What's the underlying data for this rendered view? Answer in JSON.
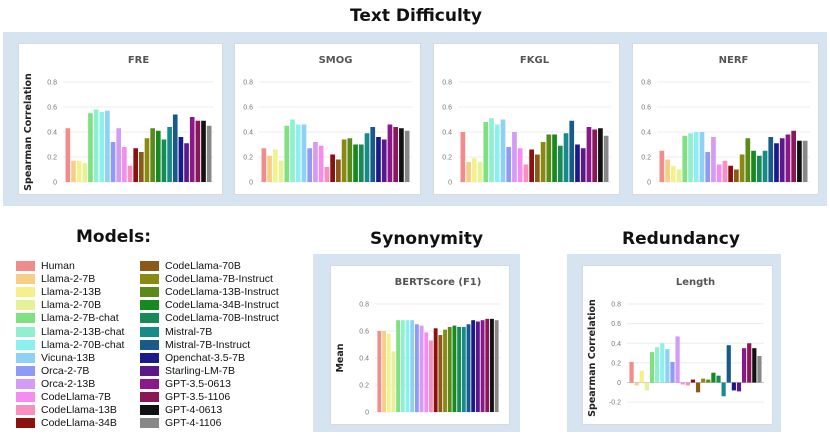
{
  "titles": {
    "text_difficulty": "Text Difficulty",
    "models": "Models:",
    "synonymity": "Synonymity",
    "redundancy": "Redundancy"
  },
  "models": [
    {
      "name": "Human",
      "color": "#f28b8b"
    },
    {
      "name": "Llama-2-7B",
      "color": "#f6cf86"
    },
    {
      "name": "Llama-2-13B",
      "color": "#f4f18c"
    },
    {
      "name": "Llama-2-70B",
      "color": "#e6f29a"
    },
    {
      "name": "Llama-2-7B-chat",
      "color": "#7ee07e"
    },
    {
      "name": "Llama-2-13B-chat",
      "color": "#8ff0cf"
    },
    {
      "name": "Llama-2-70B-chat",
      "color": "#8cf0f0"
    },
    {
      "name": "Vicuna-13B",
      "color": "#8fd0f6"
    },
    {
      "name": "Orca-2-7B",
      "color": "#8f9af6"
    },
    {
      "name": "Orca-2-13B",
      "color": "#d49af4"
    },
    {
      "name": "CodeLlama-7B",
      "color": "#f58cf0"
    },
    {
      "name": "CodeLlama-13B",
      "color": "#f78fbf"
    },
    {
      "name": "CodeLlama-34B",
      "color": "#8c1010"
    },
    {
      "name": "CodeLlama-70B",
      "color": "#8a5a16"
    },
    {
      "name": "CodeLlama-7B-Instruct",
      "color": "#8a8a12"
    },
    {
      "name": "CodeLlama-13B-Instruct",
      "color": "#5a8a18"
    },
    {
      "name": "CodeLlama-34B-Instruct",
      "color": "#168a20"
    },
    {
      "name": "CodeLlama-70B-Instruct",
      "color": "#178a58"
    },
    {
      "name": "Mistral-7B",
      "color": "#178a8a"
    },
    {
      "name": "Mistral-7B-Instruct",
      "color": "#185a8a"
    },
    {
      "name": "Openchat-3.5-7B",
      "color": "#1a1a8c"
    },
    {
      "name": "Starling-LM-7B",
      "color": "#5a188c"
    },
    {
      "name": "GPT-3.5-0613",
      "color": "#8a188a"
    },
    {
      "name": "GPT-3.5-1106",
      "color": "#8a1858"
    },
    {
      "name": "GPT-4-0613",
      "color": "#111111"
    },
    {
      "name": "GPT-4-1106",
      "color": "#888888"
    }
  ],
  "chart_data": [
    {
      "type": "bar",
      "title": "FRE",
      "ylabel": "Spearman Correlation",
      "ylim": [
        0,
        0.8
      ],
      "yticks": [
        0,
        0.2,
        0.4,
        0.6,
        0.8
      ],
      "yticklabels": [
        "0",
        "0.2",
        "0.4",
        "0.6",
        "0.8"
      ],
      "values": [
        0.43,
        0.17,
        0.17,
        0.15,
        0.55,
        0.58,
        0.56,
        0.57,
        0.32,
        0.43,
        0.28,
        0.13,
        0.27,
        0.24,
        0.35,
        0.43,
        0.41,
        0.34,
        0.44,
        0.54,
        0.36,
        0.31,
        0.52,
        0.49,
        0.49,
        0.45
      ]
    },
    {
      "type": "bar",
      "title": "SMOG",
      "ylabel": "",
      "ylim": [
        0,
        0.8
      ],
      "yticks": [
        0,
        0.2,
        0.4,
        0.6,
        0.8
      ],
      "yticklabels": [
        "0",
        "0.2",
        "0.4",
        "0.6",
        "0.8"
      ],
      "values": [
        0.27,
        0.21,
        0.26,
        0.17,
        0.45,
        0.5,
        0.46,
        0.46,
        0.27,
        0.32,
        0.29,
        0.12,
        0.22,
        0.18,
        0.34,
        0.35,
        0.3,
        0.3,
        0.39,
        0.44,
        0.36,
        0.34,
        0.46,
        0.44,
        0.43,
        0.41
      ]
    },
    {
      "type": "bar",
      "title": "FKGL",
      "ylabel": "",
      "ylim": [
        0,
        0.8
      ],
      "yticks": [
        0,
        0.2,
        0.4,
        0.6,
        0.8
      ],
      "yticklabels": [
        "0",
        "0.2",
        "0.4",
        "0.6",
        "0.8"
      ],
      "values": [
        0.4,
        0.16,
        0.19,
        0.16,
        0.48,
        0.51,
        0.46,
        0.5,
        0.28,
        0.4,
        0.27,
        0.14,
        0.26,
        0.22,
        0.32,
        0.38,
        0.38,
        0.29,
        0.39,
        0.49,
        0.3,
        0.27,
        0.44,
        0.42,
        0.43,
        0.37
      ]
    },
    {
      "type": "bar",
      "title": "NERF",
      "ylabel": "",
      "ylim": [
        0,
        0.8
      ],
      "yticks": [
        0,
        0.2,
        0.4,
        0.6,
        0.8
      ],
      "yticklabels": [
        "0",
        "0.2",
        "0.4",
        "0.6",
        "0.8"
      ],
      "values": [
        0.25,
        0.18,
        0.13,
        0.1,
        0.37,
        0.39,
        0.4,
        0.4,
        0.24,
        0.36,
        0.14,
        0.17,
        0.13,
        0.1,
        0.22,
        0.35,
        0.25,
        0.21,
        0.25,
        0.36,
        0.31,
        0.35,
        0.38,
        0.41,
        0.33,
        0.33
      ]
    },
    {
      "type": "bar",
      "title": "BERTScore (F1)",
      "ylabel": "Mean",
      "ylim": [
        0,
        0.8
      ],
      "yticks": [
        0,
        0.2,
        0.4,
        0.6,
        0.8
      ],
      "yticklabels": [
        "0",
        "0.2",
        "0.4",
        "0.6",
        "0.8"
      ],
      "values": [
        0.6,
        0.6,
        0.58,
        0.45,
        0.68,
        0.68,
        0.68,
        0.68,
        0.65,
        0.64,
        0.59,
        0.53,
        0.62,
        0.57,
        0.61,
        0.63,
        0.64,
        0.63,
        0.63,
        0.65,
        0.68,
        0.67,
        0.68,
        0.69,
        0.69,
        0.68
      ]
    },
    {
      "type": "bar",
      "title": "Length",
      "ylabel": "Spearman Correlation",
      "ylim": [
        -0.3,
        0.8
      ],
      "yticks": [
        -0.2,
        0,
        0.2,
        0.4,
        0.6,
        0.8
      ],
      "yticklabels": [
        "-0.2",
        "0",
        "0.2",
        "0.4",
        "0.6",
        "0.8"
      ],
      "values": [
        0.21,
        -0.03,
        0.12,
        -0.08,
        0.31,
        0.36,
        0.4,
        0.34,
        0.21,
        0.47,
        -0.02,
        -0.03,
        0.03,
        -0.1,
        0.04,
        0.03,
        0.1,
        0.07,
        -0.14,
        0.38,
        -0.08,
        -0.09,
        0.35,
        0.4,
        0.35,
        0.27
      ]
    }
  ]
}
